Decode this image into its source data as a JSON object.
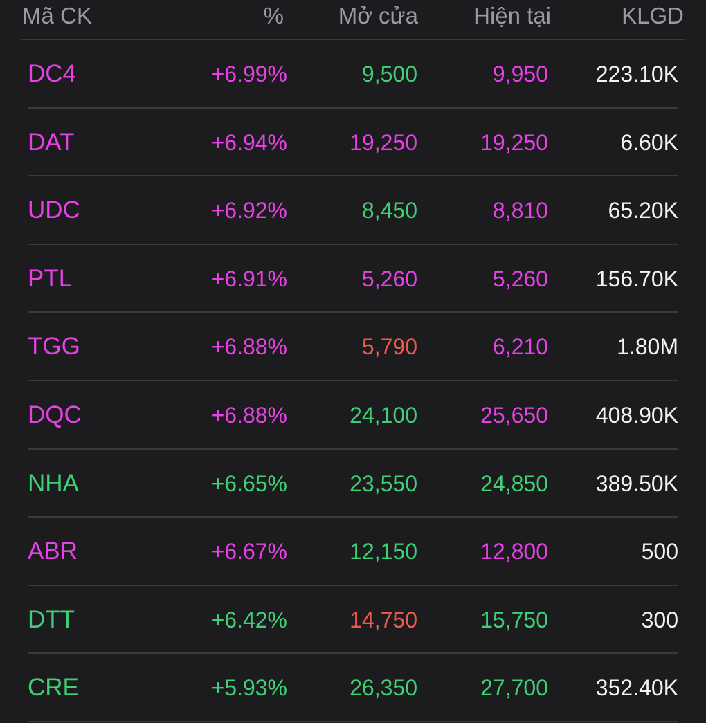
{
  "colors": {
    "background": "#1c1c1e",
    "ceiling": "#e640e6",
    "up": "#3fcf74",
    "down": "#f0594e",
    "text": "#f2f2f2",
    "header": "#9a9aa0",
    "divider": "#3a3a3c"
  },
  "header": {
    "symbol": "Mã CK",
    "percent": "%",
    "open": "Mở cửa",
    "current": "Hiện tại",
    "volume": "KLGD"
  },
  "rows": [
    {
      "symbol": "DC4",
      "percent": "+6.99%",
      "open": "9,500",
      "current": "9,950",
      "volume": "223.10K",
      "symbol_color": "magenta",
      "open_color": "green",
      "current_color": "magenta"
    },
    {
      "symbol": "DAT",
      "percent": "+6.94%",
      "open": "19,250",
      "current": "19,250",
      "volume": "6.60K",
      "symbol_color": "magenta",
      "open_color": "magenta",
      "current_color": "magenta"
    },
    {
      "symbol": "UDC",
      "percent": "+6.92%",
      "open": "8,450",
      "current": "8,810",
      "volume": "65.20K",
      "symbol_color": "magenta",
      "open_color": "green",
      "current_color": "magenta"
    },
    {
      "symbol": "PTL",
      "percent": "+6.91%",
      "open": "5,260",
      "current": "5,260",
      "volume": "156.70K",
      "symbol_color": "magenta",
      "open_color": "magenta",
      "current_color": "magenta"
    },
    {
      "symbol": "TGG",
      "percent": "+6.88%",
      "open": "5,790",
      "current": "6,210",
      "volume": "1.80M",
      "symbol_color": "magenta",
      "open_color": "red",
      "current_color": "magenta"
    },
    {
      "symbol": "DQC",
      "percent": "+6.88%",
      "open": "24,100",
      "current": "25,650",
      "volume": "408.90K",
      "symbol_color": "magenta",
      "open_color": "green",
      "current_color": "magenta"
    },
    {
      "symbol": "NHA",
      "percent": "+6.65%",
      "open": "23,550",
      "current": "24,850",
      "volume": "389.50K",
      "symbol_color": "green",
      "open_color": "green",
      "current_color": "green"
    },
    {
      "symbol": "ABR",
      "percent": "+6.67%",
      "open": "12,150",
      "current": "12,800",
      "volume": "500",
      "symbol_color": "magenta",
      "open_color": "green",
      "current_color": "magenta"
    },
    {
      "symbol": "DTT",
      "percent": "+6.42%",
      "open": "14,750",
      "current": "15,750",
      "volume": "300",
      "symbol_color": "green",
      "open_color": "red",
      "current_color": "green"
    },
    {
      "symbol": "CRE",
      "percent": "+5.93%",
      "open": "26,350",
      "current": "27,700",
      "volume": "352.40K",
      "symbol_color": "green",
      "open_color": "green",
      "current_color": "green"
    }
  ]
}
